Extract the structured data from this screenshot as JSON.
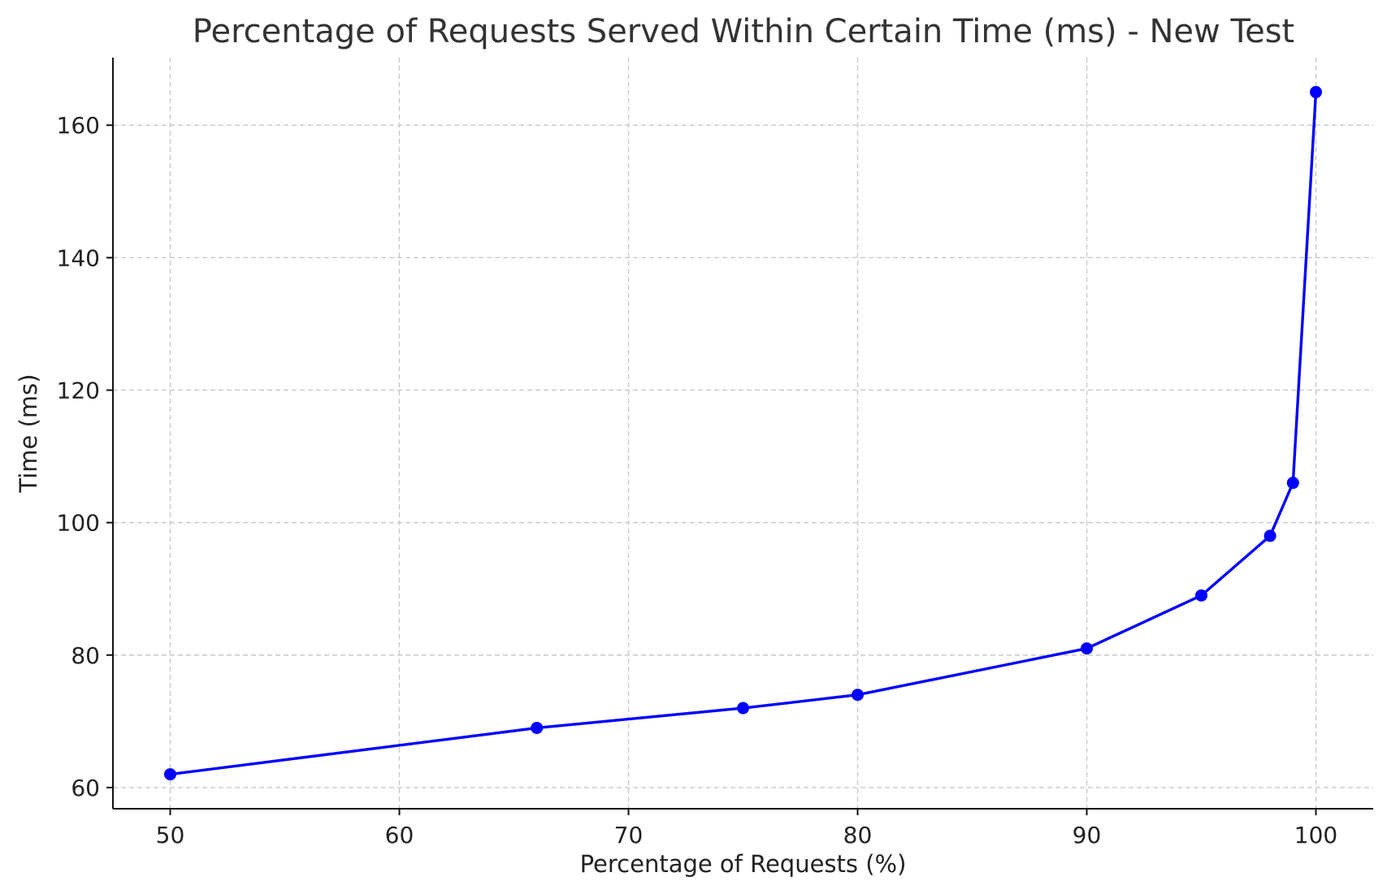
{
  "colors": {
    "series_line": "#0000ff",
    "grid": "#c8c8c8",
    "axis": "#111111",
    "title": "#333333",
    "background": "#ffffff"
  },
  "chart_data": {
    "type": "line",
    "title": "Percentage of Requests Served Within Certain Time (ms) - New Test",
    "xlabel": "Percentage of Requests (%)",
    "ylabel": "Time (ms)",
    "xlim": [
      47.5,
      102.5
    ],
    "ylim": [
      56.8,
      170.2
    ],
    "xticks": [
      50,
      60,
      70,
      80,
      90,
      100
    ],
    "yticks": [
      60,
      80,
      100,
      120,
      140,
      160
    ],
    "grid": true,
    "legend": "none",
    "markers": "circle",
    "series": [
      {
        "x": [
          50,
          66,
          75,
          80,
          90,
          95,
          98,
          99,
          100
        ],
        "values": [
          62,
          69,
          72,
          74,
          81,
          89,
          98,
          106,
          165
        ]
      }
    ]
  }
}
